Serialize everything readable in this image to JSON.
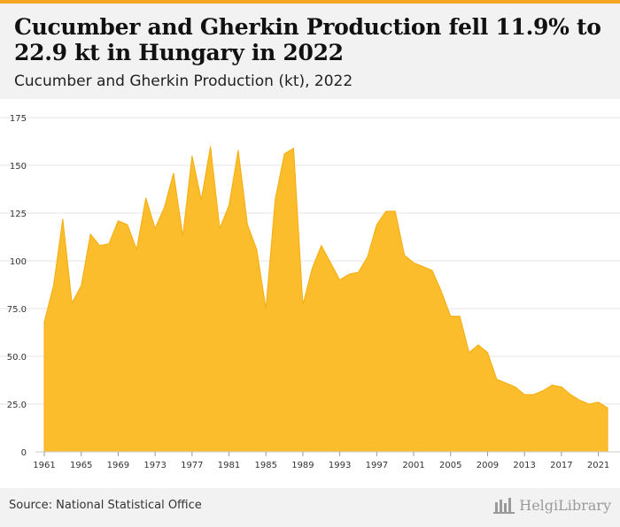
{
  "header": {
    "title": "Cucumber and Gherkin Production fell 11.9% to 22.9 kt in Hungary in 2022",
    "subtitle": "Cucumber and Gherkin Production (kt), 2022"
  },
  "footer": {
    "source": "Source: National Statistical Office",
    "logo_text": "HelgiLibrary"
  },
  "colors": {
    "area_fill": "#fbbd2c",
    "area_stroke": "#f5ad10",
    "grid": "#e6e6e6",
    "accent": "#f5a623"
  },
  "chart_data": {
    "type": "area",
    "x": [
      1961,
      1962,
      1963,
      1964,
      1965,
      1966,
      1967,
      1968,
      1969,
      1970,
      1971,
      1972,
      1973,
      1974,
      1975,
      1976,
      1977,
      1978,
      1979,
      1980,
      1981,
      1982,
      1983,
      1984,
      1985,
      1986,
      1987,
      1988,
      1989,
      1990,
      1991,
      1992,
      1993,
      1994,
      1995,
      1996,
      1997,
      1998,
      1999,
      2000,
      2001,
      2002,
      2003,
      2004,
      2005,
      2006,
      2007,
      2008,
      2009,
      2010,
      2011,
      2012,
      2013,
      2014,
      2015,
      2016,
      2017,
      2018,
      2019,
      2020,
      2021,
      2022
    ],
    "values": [
      68,
      87,
      122,
      78,
      87,
      114,
      108,
      109,
      121,
      119,
      106,
      133,
      117,
      128,
      146,
      113,
      155,
      132,
      160,
      117,
      129,
      158,
      119,
      106,
      75,
      132,
      156,
      159,
      77,
      96,
      108,
      99,
      90,
      93,
      94,
      102,
      119,
      126,
      126,
      103,
      99,
      97,
      95,
      84,
      71,
      71,
      52,
      56,
      52,
      38,
      36,
      34,
      30,
      30,
      32,
      35,
      34,
      30,
      27,
      25,
      26,
      23
    ],
    "ylim": [
      0,
      175
    ],
    "yticks": [
      "0",
      "25.0",
      "50.0",
      "75.0",
      "100",
      "125",
      "150",
      "175"
    ],
    "ytick_values": [
      0,
      25,
      50,
      75,
      100,
      125,
      150,
      175
    ],
    "xticks": [
      1961,
      1965,
      1969,
      1973,
      1977,
      1981,
      1985,
      1989,
      1993,
      1997,
      2001,
      2005,
      2009,
      2013,
      2017,
      2021
    ],
    "grid": true,
    "title": "Cucumber and Gherkin Production (kt), 2022"
  }
}
